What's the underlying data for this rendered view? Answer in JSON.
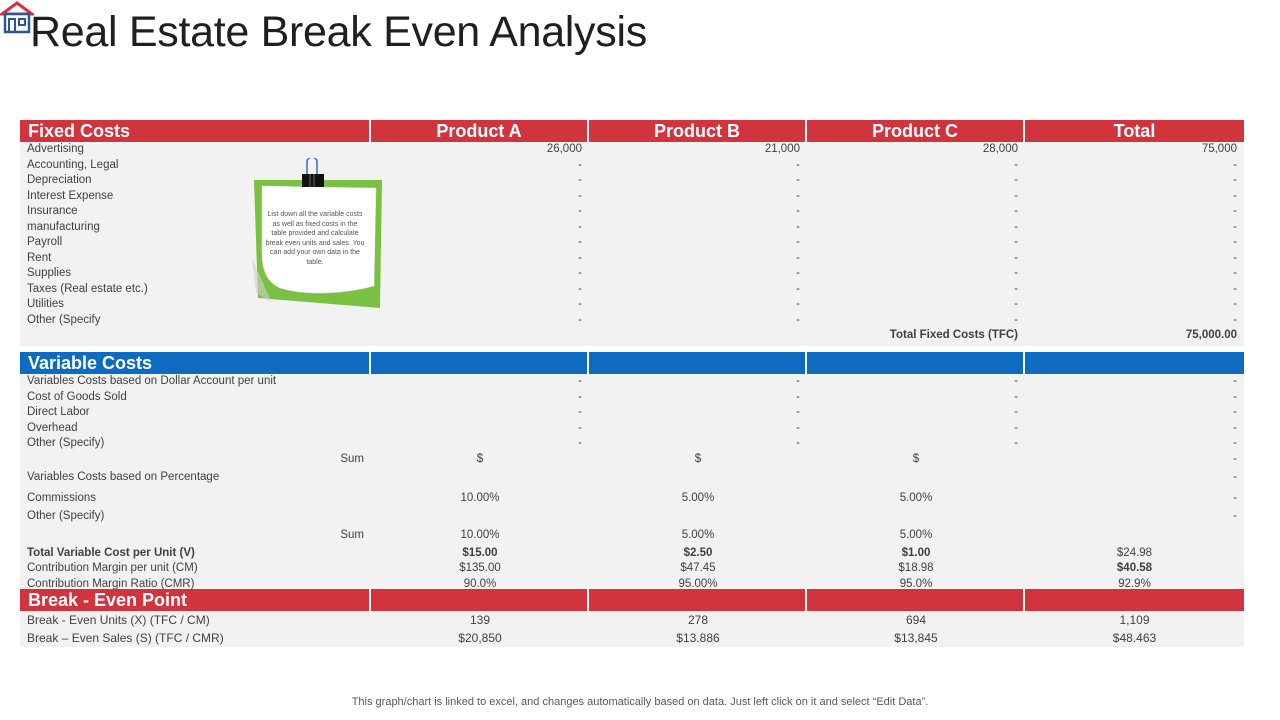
{
  "title": "Real Estate Break Even Analysis",
  "colors": {
    "red_header": "#d1343d",
    "blue_header": "#0d6cc1",
    "row_bg": "#f2f2f2",
    "note_green": "#7ac143"
  },
  "icons": {
    "logo": "house-icon",
    "clip": "binder-clip-icon"
  },
  "fixed": {
    "headers": [
      "Fixed Costs",
      "Product A",
      "Product B",
      "Product C",
      "Total"
    ],
    "rows": [
      [
        "Advertising",
        "26,000",
        "21,000",
        "28,000",
        "75,000"
      ],
      [
        "Accounting, Legal",
        "-",
        "-",
        "-",
        "-"
      ],
      [
        "Depreciation",
        "-",
        "-",
        "-",
        "-"
      ],
      [
        "Interest Expense",
        "-",
        "-",
        "-",
        "-"
      ],
      [
        "Insurance",
        "-",
        "-",
        "-",
        "-"
      ],
      [
        "manufacturing",
        "-",
        "-",
        "-",
        "-"
      ],
      [
        "Payroll",
        "-",
        "-",
        "-",
        "-"
      ],
      [
        "Rent",
        "-",
        "-",
        "-",
        "-"
      ],
      [
        "Supplies",
        "-",
        "-",
        "-",
        "-"
      ],
      [
        "Taxes (Real estate etc.)",
        "-",
        "-",
        "-",
        "-"
      ],
      [
        "Utilities",
        "-",
        "-",
        "-",
        "-"
      ],
      [
        "Other (Specify",
        "-",
        "-",
        "-",
        "-"
      ]
    ],
    "tfc_label": "Total Fixed Costs (TFC)",
    "tfc_value": "75,000.00"
  },
  "note": {
    "text": "List down all the variable costs as well as fixed costs in the table provided and calculate break even units and sales. You can add your own data in the table."
  },
  "variable": {
    "headers": [
      "Variable Costs",
      "",
      "",
      "",
      ""
    ],
    "rows": [
      [
        "Variables Costs based on Dollar Account per unit",
        "-",
        "-",
        "-",
        "-"
      ],
      [
        "Cost of Goods Sold",
        "-",
        "-",
        "-",
        "-"
      ],
      [
        "Direct Labor",
        "-",
        "-",
        "-",
        "-"
      ],
      [
        "Overhead",
        "-",
        "-",
        "-",
        "-"
      ],
      [
        "Other (Specify)",
        "-",
        "-",
        "-",
        "-"
      ]
    ],
    "sum1": [
      "Sum",
      "$",
      "$",
      "$",
      "-"
    ],
    "pct_label": "Variables Costs based on Percentage",
    "pct_total": "-",
    "commissions": [
      "Commissions",
      "10.00%",
      "5.00%",
      "5.00%",
      "-"
    ],
    "other_pct": [
      "Other (Specify)",
      "",
      "",
      "",
      "-"
    ],
    "sum2": [
      "Sum",
      "10.00%",
      "5.00%",
      "5.00%",
      ""
    ],
    "tvc": [
      "Total Variable Cost per Unit (V)",
      "$15.00",
      "$2.50",
      "$1.00",
      "$24.98"
    ],
    "cm": [
      "Contribution Margin per unit (CM)",
      "$135.00",
      "$47.45",
      "$18.98",
      "$40.58"
    ],
    "cmr": [
      "Contribution Margin Ratio (CMR)",
      "90.0%",
      "95.00%",
      "95.0%",
      "92.9%"
    ]
  },
  "breakeven": {
    "headers": [
      "Break - Even Point",
      "",
      "",
      "",
      ""
    ],
    "units": [
      "Break - Even Units (X)  (TFC  / CM)",
      "139",
      "278",
      "694",
      "1,109"
    ],
    "sales": [
      "Break – Even  Sales (S) (TFC  / CMR)",
      "$20,850",
      "$13.886",
      "$13,845",
      "$48.463"
    ]
  },
  "footer": "This graph/chart is linked to excel,  and changes automatically based on data. Just left click on it and select “Edit Data”."
}
